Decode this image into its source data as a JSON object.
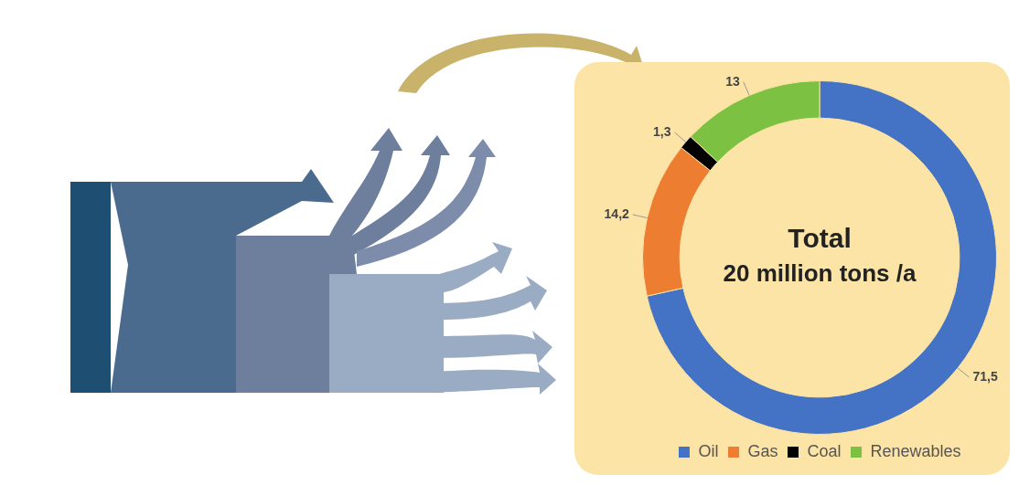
{
  "chart_data": {
    "type": "donut",
    "categories": [
      "Oil",
      "Gas",
      "Coal",
      "Renewables"
    ],
    "values": [
      71.5,
      14.2,
      1.3,
      13
    ],
    "value_labels": [
      "71,5",
      "14,2",
      "1,3",
      "13"
    ],
    "colors": [
      "#4472c4",
      "#ed7d31",
      "#000000",
      "#7dc142"
    ],
    "annotations": [
      "Total",
      "20 million tons /a"
    ],
    "legend": "bottom"
  }
}
